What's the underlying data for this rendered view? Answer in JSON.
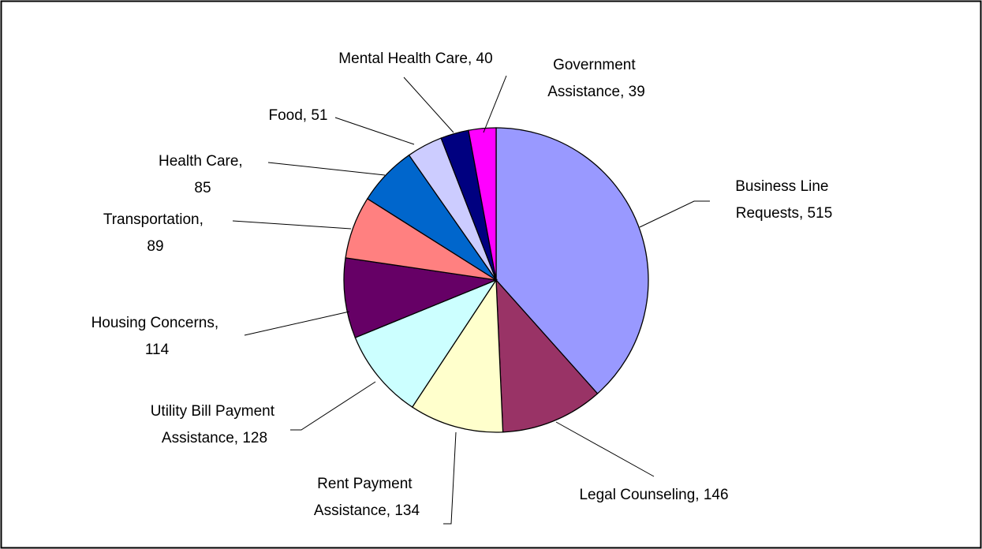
{
  "chart_data": {
    "type": "pie",
    "categories": [
      "Business Line Requests",
      "Legal Counseling",
      "Rent Payment Assistance",
      "Utility Bill Payment Assistance",
      "Housing Concerns",
      "Transportation",
      "Health Care",
      "Food",
      "Mental Health Care",
      "Government Assistance"
    ],
    "values": [
      515,
      146,
      134,
      128,
      114,
      89,
      85,
      51,
      40,
      39
    ],
    "value_labels": [
      "Business Line Requests, 515",
      "Legal Counseling, 146",
      "Rent Payment Assistance, 134",
      "Utility Bill Payment Assistance, 128",
      "Housing Concerns, 114",
      "Transportation, 89",
      "Health Care, 85",
      "Food, 51",
      "Mental Health Care, 40",
      "Government Assistance, 39"
    ],
    "colors": [
      "#9999ff",
      "#993366",
      "#ffffcc",
      "#ccffff",
      "#660066",
      "#ff8080",
      "#0066cc",
      "#ccccff",
      "#000080",
      "#ff00ff"
    ]
  }
}
